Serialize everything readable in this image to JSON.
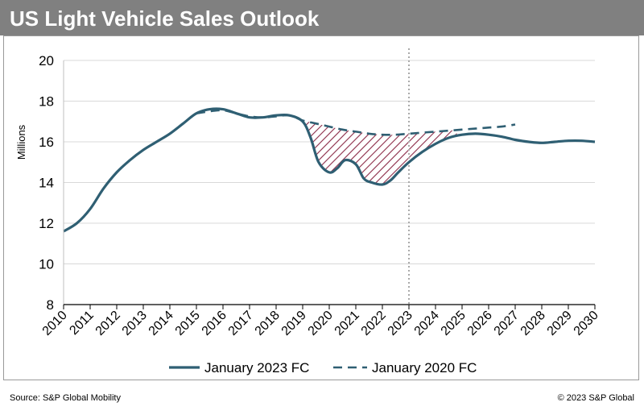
{
  "header": {
    "title": "US Light Vehicle Sales Outlook"
  },
  "footer": {
    "source": "Source: S&P Global Mobility",
    "copyright": "© 2023 S&P Global"
  },
  "colors": {
    "title_bar": "#808080",
    "series_line": "#2f5f73",
    "hatch": "#8b2a46",
    "vline": "#aaaaaa"
  },
  "chart_data": {
    "type": "line",
    "title": "US Light Vehicle Sales Outlook",
    "ylabel": "Millions",
    "xlabel": "",
    "xlim": [
      2010,
      2030
    ],
    "ylim": [
      8,
      20
    ],
    "yticks": [
      8,
      10,
      12,
      14,
      16,
      18,
      20
    ],
    "xticks": [
      "2010",
      "2011",
      "2012",
      "2013",
      "2014",
      "2015",
      "2016",
      "2017",
      "2018",
      "2019",
      "2020",
      "2021",
      "2022",
      "2023",
      "2024",
      "2025",
      "2026",
      "2027",
      "2028",
      "2029",
      "2030"
    ],
    "grid": "horizontal",
    "legend_position": "bottom",
    "vertical_marker": 2023,
    "shaded_region": "between series, 2019 to 2025",
    "series": [
      {
        "name": "January 2023 FC",
        "style": "solid",
        "x": [
          2010,
          2010.5,
          2011,
          2011.5,
          2012,
          2012.5,
          2013,
          2013.5,
          2014,
          2014.5,
          2015,
          2015.5,
          2016,
          2016.5,
          2017,
          2017.5,
          2018,
          2018.5,
          2019,
          2019.3,
          2019.6,
          2020,
          2020.3,
          2020.6,
          2021,
          2021.3,
          2021.6,
          2022,
          2022.3,
          2022.6,
          2023,
          2023.5,
          2024,
          2024.5,
          2025,
          2025.5,
          2026,
          2026.5,
          2027,
          2027.5,
          2028,
          2028.5,
          2029,
          2029.5,
          2030
        ],
        "values": [
          11.6,
          12.0,
          12.7,
          13.7,
          14.5,
          15.1,
          15.6,
          16.0,
          16.4,
          16.9,
          17.4,
          17.6,
          17.6,
          17.4,
          17.2,
          17.2,
          17.3,
          17.3,
          17.0,
          16.2,
          15.0,
          14.5,
          14.7,
          15.1,
          14.9,
          14.2,
          14.0,
          13.9,
          14.1,
          14.5,
          15.0,
          15.5,
          15.9,
          16.2,
          16.35,
          16.4,
          16.35,
          16.25,
          16.1,
          16.0,
          15.95,
          16.0,
          16.05,
          16.05,
          16.0
        ]
      },
      {
        "name": "January 2020 FC",
        "style": "dashed",
        "x": [
          2015,
          2015.5,
          2016,
          2016.5,
          2017,
          2017.5,
          2018,
          2018.5,
          2019,
          2019.5,
          2020,
          2020.5,
          2021,
          2021.5,
          2022,
          2022.5,
          2023,
          2023.5,
          2024,
          2024.5,
          2025,
          2025.5,
          2026,
          2026.5,
          2027
        ],
        "values": [
          17.4,
          17.5,
          17.55,
          17.4,
          17.25,
          17.2,
          17.25,
          17.3,
          17.05,
          16.9,
          16.75,
          16.6,
          16.5,
          16.4,
          16.35,
          16.35,
          16.4,
          16.45,
          16.5,
          16.55,
          16.6,
          16.65,
          16.7,
          16.75,
          16.85
        ]
      }
    ]
  }
}
